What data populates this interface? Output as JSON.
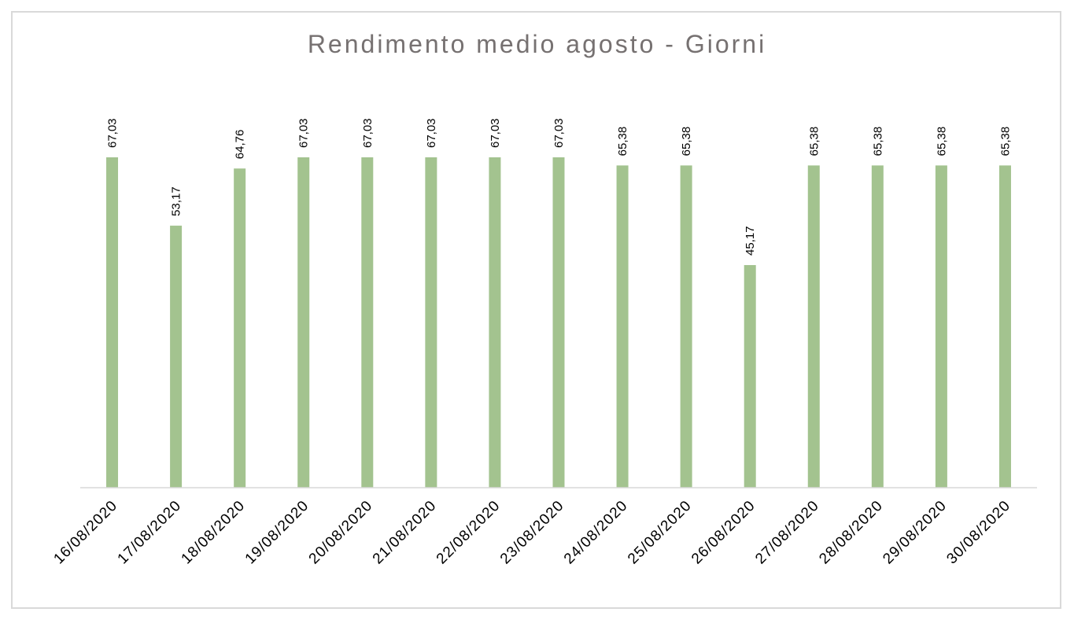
{
  "chart_data": {
    "type": "bar",
    "title": "Rendimento medio agosto - Giorni",
    "xlabel": "",
    "ylabel": "",
    "categories": [
      "16/08/2020",
      "17/08/2020",
      "18/08/2020",
      "19/08/2020",
      "20/08/2020",
      "21/08/2020",
      "22/08/2020",
      "23/08/2020",
      "24/08/2020",
      "25/08/2020",
      "26/08/2020",
      "27/08/2020",
      "28/08/2020",
      "29/08/2020",
      "30/08/2020"
    ],
    "values": [
      67.03,
      53.17,
      64.76,
      67.03,
      67.03,
      67.03,
      67.03,
      67.03,
      65.38,
      65.38,
      45.17,
      65.38,
      65.38,
      65.38,
      65.38
    ],
    "data_labels": [
      "67,03",
      "53,17",
      "64,76",
      "67,03",
      "67,03",
      "67,03",
      "67,03",
      "67,03",
      "65,38",
      "65,38",
      "45,17",
      "65,38",
      "65,38",
      "65,38",
      "65,38"
    ],
    "ylim": [
      0,
      67.03
    ],
    "grid": false,
    "legend": "none",
    "colors": {
      "bar": "#a3c38f",
      "title": "#767171",
      "axis": "#d9d9d9",
      "label": "#000000"
    }
  }
}
